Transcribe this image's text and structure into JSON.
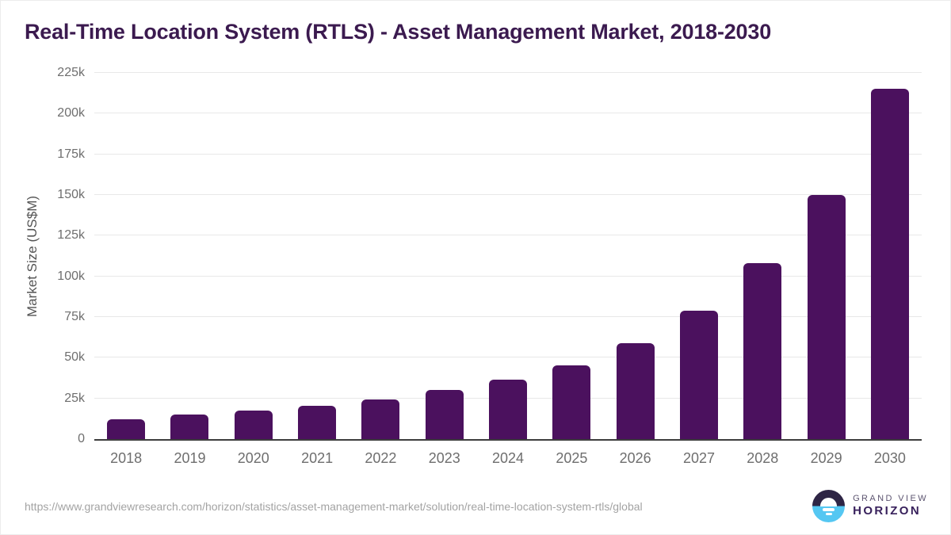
{
  "title": "Real-Time Location System (RTLS) - Asset Management Market, 2018-2030",
  "chart_data": {
    "type": "bar",
    "title": "Real-Time Location System (RTLS) - Asset Management Market, 2018-2030",
    "categories": [
      "2018",
      "2019",
      "2020",
      "2021",
      "2022",
      "2023",
      "2024",
      "2025",
      "2026",
      "2027",
      "2028",
      "2029",
      "2030"
    ],
    "values": [
      12000,
      15000,
      17300,
      20500,
      24300,
      30000,
      36300,
      45400,
      59000,
      78900,
      108200,
      150000,
      215300
    ],
    "unit": "US$M",
    "xlabel": "",
    "ylabel": "Market Size (US$M)",
    "ylim": [
      0,
      225000
    ],
    "y_ticks": [
      {
        "value": 0,
        "label": "0"
      },
      {
        "value": 25000,
        "label": "25k"
      },
      {
        "value": 50000,
        "label": "50k"
      },
      {
        "value": 75000,
        "label": "75k"
      },
      {
        "value": 100000,
        "label": "100k"
      },
      {
        "value": 125000,
        "label": "125k"
      },
      {
        "value": 150000,
        "label": "150k"
      },
      {
        "value": 175000,
        "label": "175k"
      },
      {
        "value": 200000,
        "label": "200k"
      },
      {
        "value": 225000,
        "label": "225k"
      }
    ],
    "grid": "horizontal",
    "legend_position": "none",
    "bar_color": "#4b115e"
  },
  "footer": {
    "source_url": "https://www.grandviewresearch.com/horizon/statistics/asset-management-market/solution/real-time-location-system-rtls/global",
    "logo": {
      "top": "GRAND VIEW",
      "bottom": "HORIZON"
    }
  },
  "colors": {
    "title_text": "#3b1a4f",
    "bar": "#4b115e",
    "tick_text": "#6e6e6e",
    "y_axis_title_text": "#545454",
    "gridline": "#e8e8e8",
    "axis_line": "#3d3d3d",
    "url_text": "#a3a3a3",
    "logo_dark": "#2e2545",
    "logo_blue": "#55c7f2",
    "logo_horizon_text": "#38215c"
  }
}
